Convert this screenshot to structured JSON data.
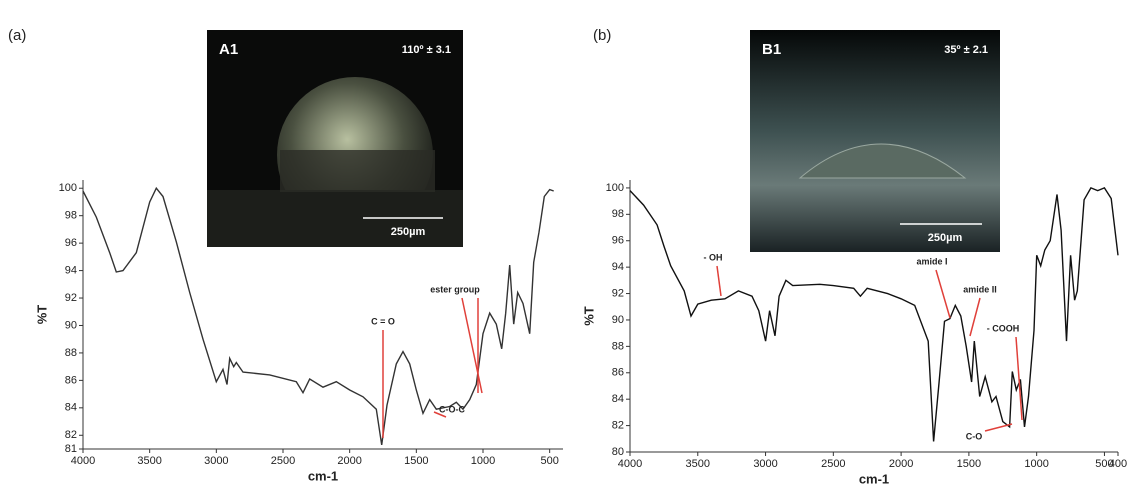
{
  "chart_data": [
    {
      "type": "line",
      "panel_label": "(a)",
      "xlabel": "cm-1",
      "ylabel": "%T",
      "color": "#333333",
      "xlim": [
        4000,
        400
      ],
      "xticks": [
        4000,
        3500,
        3000,
        2500,
        2000,
        1500,
        1000,
        500
      ],
      "ylim": [
        81,
        100.6
      ],
      "yticks": [
        81,
        82,
        84,
        86,
        88,
        90,
        92,
        94,
        96,
        98,
        100
      ],
      "x": [
        4000,
        3900,
        3800,
        3750,
        3700,
        3600,
        3500,
        3450,
        3400,
        3300,
        3200,
        3100,
        3000,
        2950,
        2920,
        2900,
        2870,
        2850,
        2800,
        2600,
        2400,
        2350,
        2300,
        2200,
        2100,
        2000,
        1900,
        1800,
        1760,
        1720,
        1650,
        1600,
        1550,
        1500,
        1450,
        1400,
        1350,
        1250,
        1200,
        1150,
        1100,
        1050,
        1000,
        950,
        900,
        860,
        830,
        800,
        770,
        740,
        700,
        650,
        620,
        580,
        540,
        500,
        470
      ],
      "values": [
        99.8,
        97.9,
        95.3,
        93.9,
        94,
        95.3,
        99,
        100,
        99.4,
        96.1,
        92.4,
        89,
        85.9,
        86.8,
        85.7,
        87.6,
        87,
        87.3,
        86.6,
        86.4,
        85.9,
        85.1,
        86.1,
        85.5,
        85.9,
        85.3,
        84.8,
        83.9,
        81.3,
        84.2,
        87.2,
        88.1,
        87.2,
        85.3,
        83.6,
        84.6,
        83.9,
        84.1,
        84.4,
        83.9,
        84.6,
        85.7,
        89.4,
        90.9,
        90.1,
        88.3,
        90.9,
        94.4,
        90.1,
        92.4,
        91.6,
        89.4,
        94.6,
        96.8,
        99.4,
        99.9,
        99.8
      ],
      "annotations": [
        "C = O",
        "C-O-C",
        "ester group"
      ],
      "inset": {
        "label": "A1",
        "angle": "110º ± 3.1",
        "scale": "250µm"
      }
    },
    {
      "type": "line",
      "panel_label": "(b)",
      "xlabel": "cm-1",
      "ylabel": "%T",
      "color": "#111111",
      "xlim": [
        4000,
        400
      ],
      "xticks": [
        4000,
        3500,
        3000,
        2500,
        2000,
        1500,
        1000,
        500,
        400
      ],
      "ylim": [
        80,
        100.6
      ],
      "yticks": [
        80,
        82,
        84,
        86,
        88,
        90,
        92,
        94,
        96,
        98,
        100
      ],
      "x": [
        4000,
        3900,
        3800,
        3750,
        3700,
        3600,
        3550,
        3500,
        3400,
        3300,
        3200,
        3100,
        3050,
        3000,
        2970,
        2930,
        2900,
        2850,
        2800,
        2600,
        2500,
        2350,
        2300,
        2250,
        2100,
        2000,
        1900,
        1800,
        1760,
        1720,
        1680,
        1640,
        1600,
        1560,
        1520,
        1480,
        1460,
        1420,
        1380,
        1330,
        1300,
        1250,
        1200,
        1180,
        1150,
        1120,
        1090,
        1060,
        1020,
        1000,
        970,
        940,
        900,
        850,
        820,
        780,
        750,
        720,
        700,
        650,
        600,
        550,
        500,
        450,
        400
      ],
      "values": [
        99.8,
        98.7,
        97.2,
        95.6,
        94.1,
        92.2,
        90.3,
        91.2,
        91.5,
        91.6,
        92.2,
        91.8,
        90.7,
        88.4,
        90.7,
        88.8,
        91.8,
        93,
        92.6,
        92.7,
        92.6,
        92.4,
        91.8,
        92.4,
        92,
        91.6,
        91.1,
        88.4,
        80.8,
        85.3,
        89.9,
        90.1,
        91.1,
        90.3,
        88,
        85.3,
        88.4,
        84.2,
        85.7,
        83.8,
        84.2,
        82.3,
        81.9,
        86.1,
        84.7,
        85.5,
        81.9,
        84.2,
        89.2,
        94.9,
        94.1,
        95.3,
        96,
        99.5,
        96.8,
        88.4,
        94.9,
        91.5,
        92.2,
        99.1,
        100,
        99.8,
        100,
        99.2,
        94.9
      ],
      "annotations": [
        "- OH",
        "amide I",
        "amide II",
        "- COOH",
        "C-O"
      ],
      "inset": {
        "label": "B1",
        "angle": "35º ± 2.1",
        "scale": "250µm"
      }
    }
  ]
}
